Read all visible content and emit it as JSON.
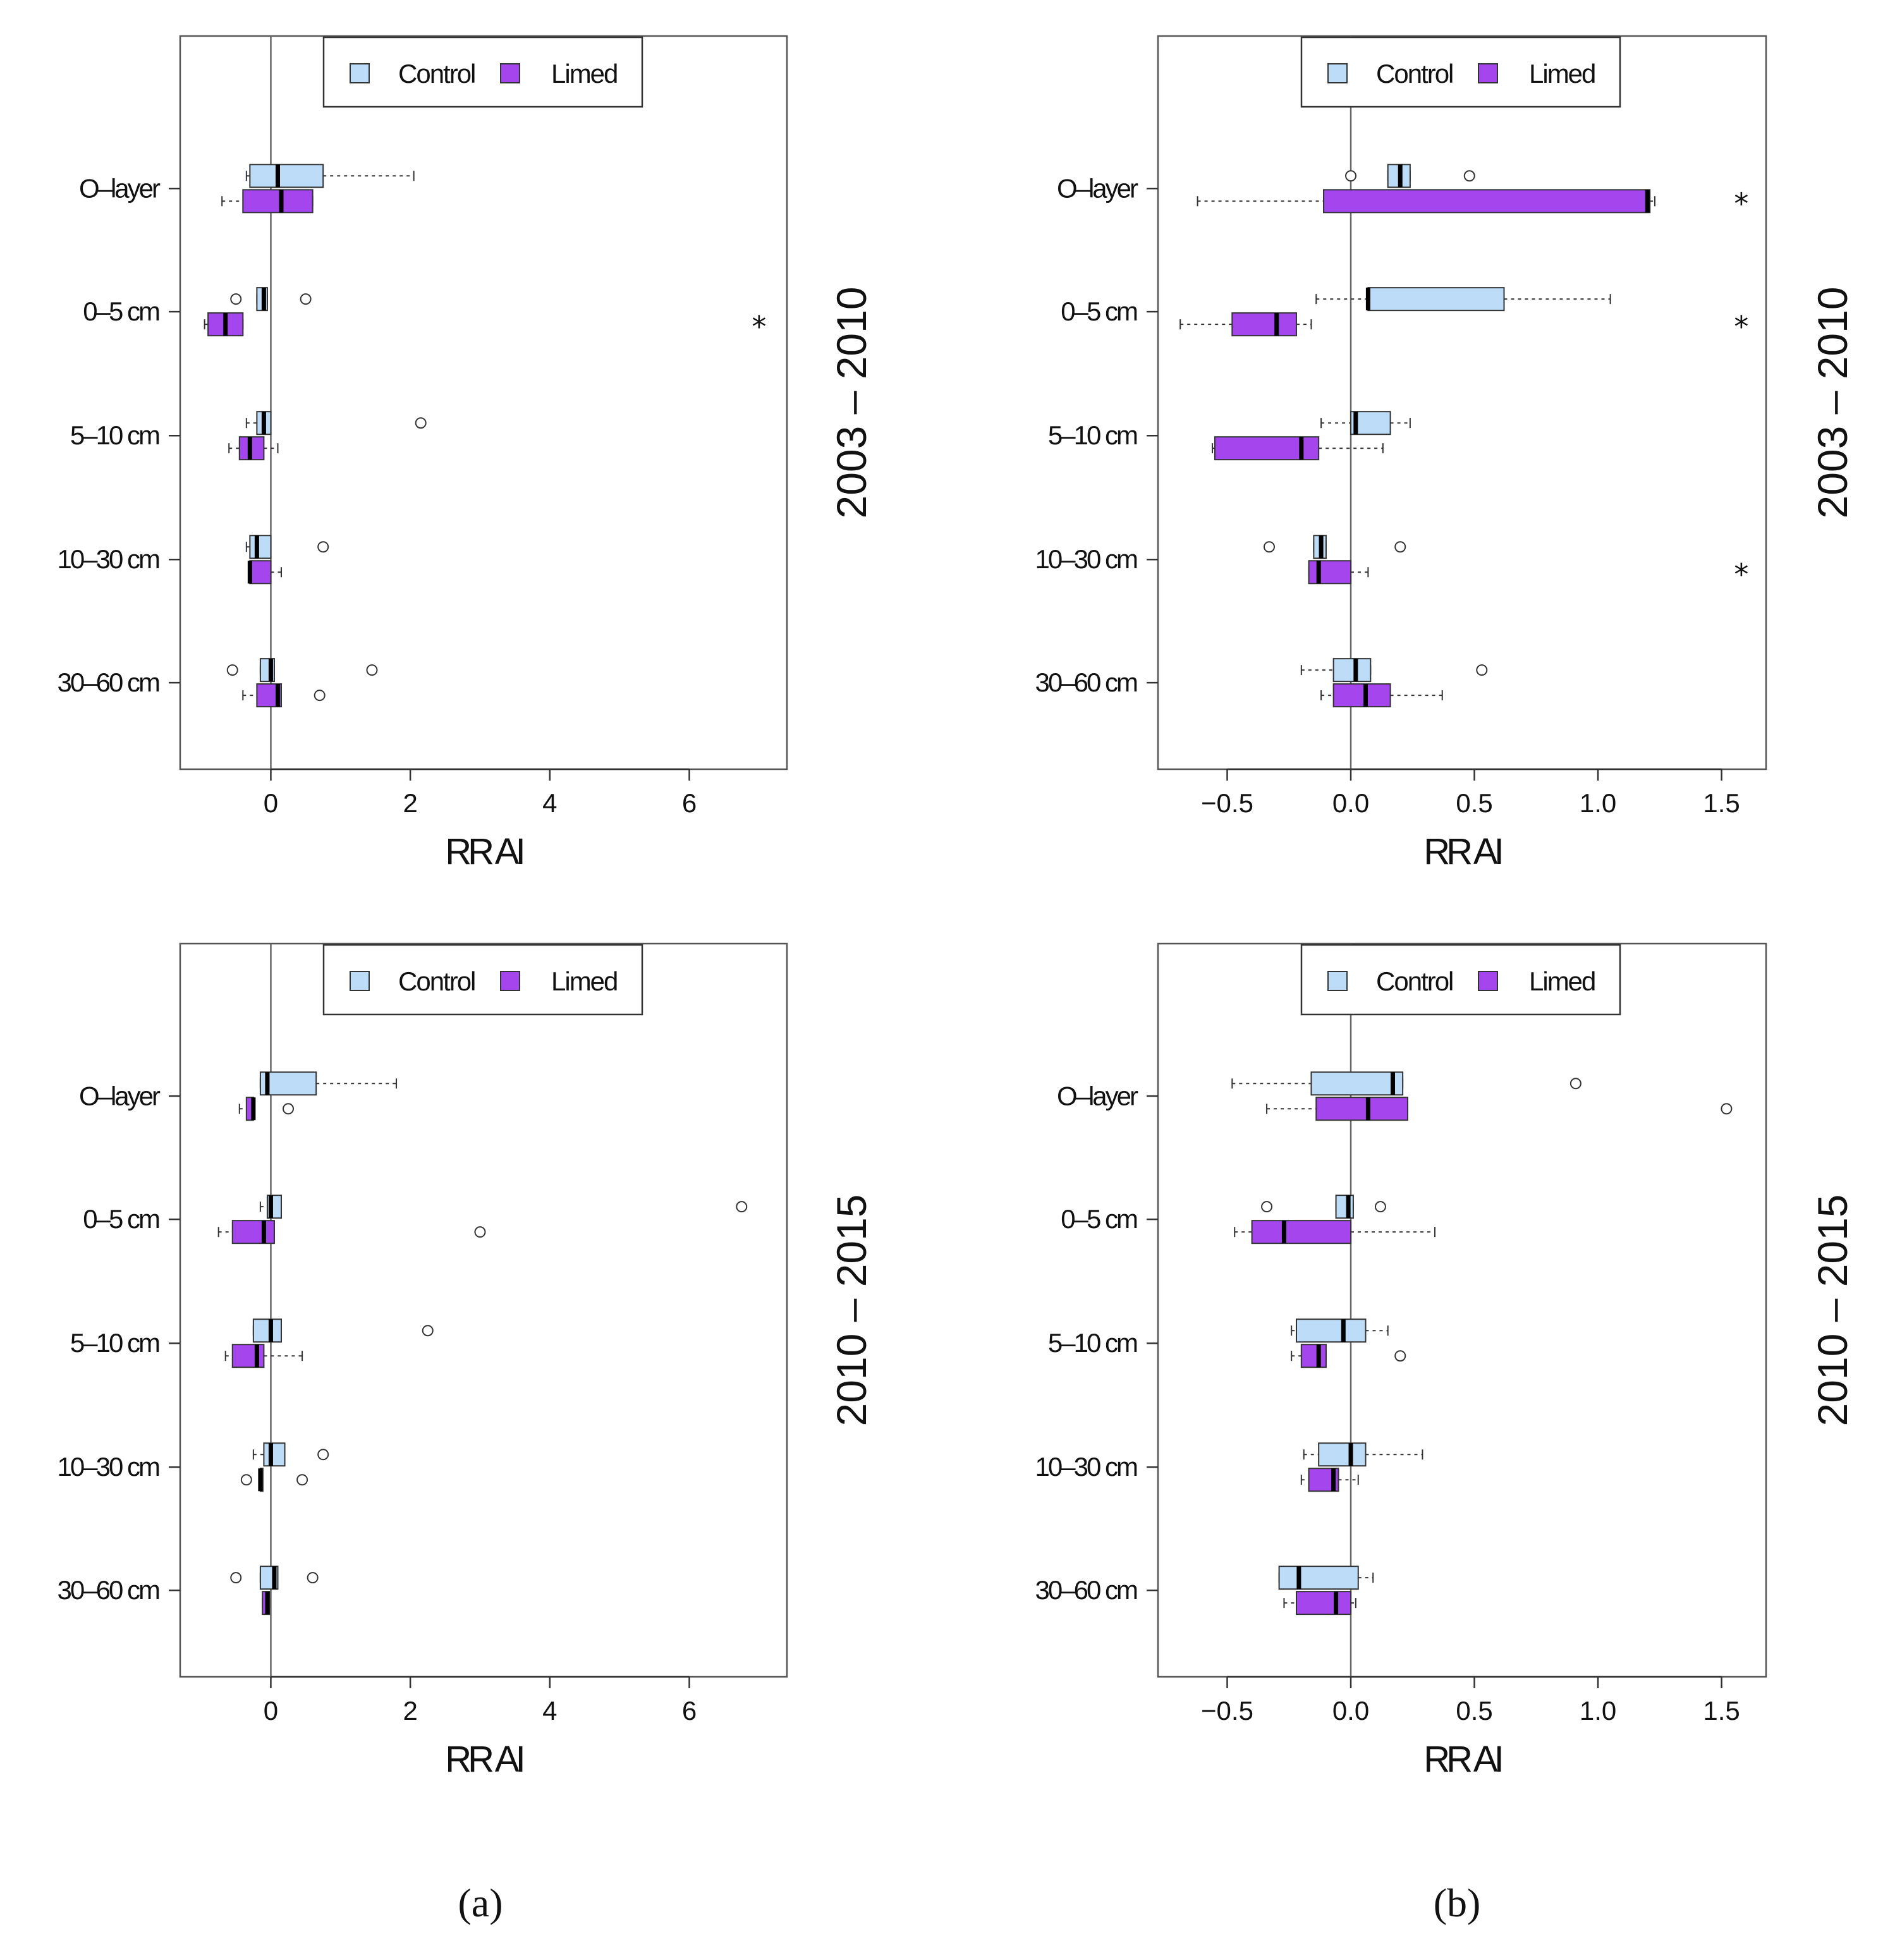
{
  "figure": {
    "captions": {
      "left": "(a)",
      "right": "(b)"
    }
  },
  "colors": {
    "control": "#bddcf7",
    "limed": "#a445ee",
    "axis": "#555555"
  },
  "chart_data": [
    {
      "id": "a-2003",
      "type": "boxplot",
      "column": "a",
      "period": "2003 – 2010",
      "xlabel": "RR AI",
      "xlim": [
        -1.3,
        7.4
      ],
      "xticks": [
        0,
        2,
        4,
        6
      ],
      "xtick_labels": [
        "0",
        "2",
        "4",
        "6"
      ],
      "categories": [
        "O–layer",
        "0–5 cm",
        "5–10 cm",
        "10–30 cm",
        "30–60 cm"
      ],
      "legend": [
        "Control",
        "Limed"
      ],
      "series": [
        {
          "name": "Control",
          "boxes": [
            {
              "wlo": -0.35,
              "q1": -0.3,
              "med": 0.1,
              "q3": 0.75,
              "whi": 2.05,
              "out": []
            },
            {
              "wlo": -0.2,
              "q1": -0.2,
              "med": -0.1,
              "q3": -0.05,
              "whi": -0.05,
              "out": [
                -0.5,
                0.5
              ]
            },
            {
              "wlo": -0.35,
              "q1": -0.2,
              "med": -0.1,
              "q3": 0.0,
              "whi": 0.0,
              "out": [
                2.15
              ]
            },
            {
              "wlo": -0.35,
              "q1": -0.3,
              "med": -0.2,
              "q3": 0.0,
              "whi": 0.0,
              "out": [
                0.75
              ]
            },
            {
              "wlo": -0.15,
              "q1": -0.15,
              "med": 0.0,
              "q3": 0.05,
              "whi": 0.05,
              "out": [
                -0.55,
                1.45
              ]
            }
          ]
        },
        {
          "name": "Limed",
          "boxes": [
            {
              "wlo": -0.7,
              "q1": -0.4,
              "med": 0.15,
              "q3": 0.6,
              "whi": 0.6,
              "out": []
            },
            {
              "wlo": -0.95,
              "q1": -0.9,
              "med": -0.65,
              "q3": -0.4,
              "whi": -0.4,
              "out": []
            },
            {
              "wlo": -0.6,
              "q1": -0.45,
              "med": -0.3,
              "q3": -0.1,
              "whi": 0.1,
              "out": []
            },
            {
              "wlo": -0.3,
              "q1": -0.3,
              "med": -0.3,
              "q3": 0.0,
              "whi": 0.15,
              "out": []
            },
            {
              "wlo": -0.4,
              "q1": -0.2,
              "med": 0.1,
              "q3": 0.15,
              "whi": 0.15,
              "out": [
                0.7
              ]
            }
          ]
        }
      ],
      "significance": [
        {
          "category": "0–5 cm",
          "label": "*"
        }
      ]
    },
    {
      "id": "b-2003",
      "type": "boxplot",
      "column": "b",
      "period": "2003 – 2010",
      "xlabel": "RR AI",
      "xlim": [
        -0.78,
        1.68
      ],
      "xticks": [
        -0.5,
        0.0,
        0.5,
        1.0,
        1.5
      ],
      "xtick_labels": [
        "−0.5",
        "0.0",
        "0.5",
        "1.0",
        "1.5"
      ],
      "categories": [
        "O–layer",
        "0–5 cm",
        "5–10 cm",
        "10–30 cm",
        "30–60 cm"
      ],
      "legend": [
        "Control",
        "Limed"
      ],
      "series": [
        {
          "name": "Control",
          "boxes": [
            {
              "wlo": 0.15,
              "q1": 0.15,
              "med": 0.2,
              "q3": 0.24,
              "whi": 0.24,
              "out": [
                0.0,
                0.48
              ]
            },
            {
              "wlo": -0.14,
              "q1": 0.07,
              "med": 0.07,
              "q3": 0.62,
              "whi": 1.05,
              "out": []
            },
            {
              "wlo": -0.12,
              "q1": 0.0,
              "med": 0.02,
              "q3": 0.16,
              "whi": 0.24,
              "out": []
            },
            {
              "wlo": -0.15,
              "q1": -0.15,
              "med": -0.12,
              "q3": -0.1,
              "whi": -0.1,
              "out": [
                -0.33,
                0.2
              ]
            },
            {
              "wlo": -0.2,
              "q1": -0.07,
              "med": 0.02,
              "q3": 0.08,
              "whi": 0.08,
              "out": [
                0.53
              ]
            }
          ]
        },
        {
          "name": "Limed",
          "boxes": [
            {
              "wlo": -0.62,
              "q1": -0.11,
              "med": 1.2,
              "q3": 1.21,
              "whi": 1.23,
              "out": []
            },
            {
              "wlo": -0.69,
              "q1": -0.48,
              "med": -0.3,
              "q3": -0.22,
              "whi": -0.16,
              "out": []
            },
            {
              "wlo": -0.56,
              "q1": -0.55,
              "med": -0.2,
              "q3": -0.13,
              "whi": 0.13,
              "out": []
            },
            {
              "wlo": -0.17,
              "q1": -0.17,
              "med": -0.13,
              "q3": 0.0,
              "whi": 0.07,
              "out": []
            },
            {
              "wlo": -0.12,
              "q1": -0.07,
              "med": 0.06,
              "q3": 0.16,
              "whi": 0.37,
              "out": []
            }
          ]
        }
      ],
      "significance": [
        {
          "category": "O–layer",
          "label": "*"
        },
        {
          "category": "0–5 cm",
          "label": "*"
        },
        {
          "category": "10–30 cm",
          "label": "*"
        }
      ]
    },
    {
      "id": "a-2010",
      "type": "boxplot",
      "column": "a",
      "period": "2010 – 2015",
      "xlabel": "RR AI",
      "xlim": [
        -1.3,
        7.4
      ],
      "xticks": [
        0,
        2,
        4,
        6
      ],
      "xtick_labels": [
        "0",
        "2",
        "4",
        "6"
      ],
      "categories": [
        "O–layer",
        "0–5 cm",
        "5–10 cm",
        "10–30 cm",
        "30–60 cm"
      ],
      "legend": [
        "Control",
        "Limed"
      ],
      "series": [
        {
          "name": "Control",
          "boxes": [
            {
              "wlo": -0.15,
              "q1": -0.15,
              "med": -0.05,
              "q3": 0.65,
              "whi": 1.8,
              "out": []
            },
            {
              "wlo": -0.15,
              "q1": -0.05,
              "med": 0.0,
              "q3": 0.15,
              "whi": 0.15,
              "out": [
                6.75
              ]
            },
            {
              "wlo": -0.25,
              "q1": -0.25,
              "med": 0.0,
              "q3": 0.15,
              "whi": 0.15,
              "out": [
                2.25
              ]
            },
            {
              "wlo": -0.25,
              "q1": -0.1,
              "med": 0.0,
              "q3": 0.2,
              "whi": 0.2,
              "out": [
                0.75
              ]
            },
            {
              "wlo": -0.15,
              "q1": -0.15,
              "med": 0.05,
              "q3": 0.1,
              "whi": 0.1,
              "out": [
                -0.5,
                0.6
              ]
            }
          ]
        },
        {
          "name": "Limed",
          "boxes": [
            {
              "wlo": -0.45,
              "q1": -0.35,
              "med": -0.25,
              "q3": -0.25,
              "whi": -0.25,
              "out": [
                0.25
              ]
            },
            {
              "wlo": -0.75,
              "q1": -0.55,
              "med": -0.1,
              "q3": 0.05,
              "whi": 0.05,
              "out": [
                3.0
              ]
            },
            {
              "wlo": -0.65,
              "q1": -0.55,
              "med": -0.2,
              "q3": -0.1,
              "whi": 0.45,
              "out": []
            },
            {
              "wlo": -0.15,
              "q1": -0.15,
              "med": -0.15,
              "q3": -0.12,
              "whi": -0.12,
              "out": [
                -0.35,
                0.45
              ]
            },
            {
              "wlo": -0.12,
              "q1": -0.12,
              "med": -0.05,
              "q3": -0.02,
              "whi": -0.02,
              "out": []
            }
          ]
        }
      ],
      "significance": []
    },
    {
      "id": "b-2010",
      "type": "boxplot",
      "column": "b",
      "period": "2010 – 2015",
      "xlabel": "RR AI",
      "xlim": [
        -0.78,
        1.68
      ],
      "xticks": [
        -0.5,
        0.0,
        0.5,
        1.0,
        1.5
      ],
      "xtick_labels": [
        "−0.5",
        "0.0",
        "0.5",
        "1.0",
        "1.5"
      ],
      "categories": [
        "O–layer",
        "0–5 cm",
        "5–10 cm",
        "10–30 cm",
        "30–60 cm"
      ],
      "legend": [
        "Control",
        "Limed"
      ],
      "series": [
        {
          "name": "Control",
          "boxes": [
            {
              "wlo": -0.48,
              "q1": -0.16,
              "med": 0.17,
              "q3": 0.21,
              "whi": 0.21,
              "out": [
                0.91
              ]
            },
            {
              "wlo": -0.06,
              "q1": -0.06,
              "med": -0.01,
              "q3": 0.01,
              "whi": 0.01,
              "out": [
                -0.34,
                0.12
              ]
            },
            {
              "wlo": -0.24,
              "q1": -0.22,
              "med": -0.03,
              "q3": 0.06,
              "whi": 0.15,
              "out": []
            },
            {
              "wlo": -0.19,
              "q1": -0.13,
              "med": 0.0,
              "q3": 0.06,
              "whi": 0.29,
              "out": []
            },
            {
              "wlo": -0.29,
              "q1": -0.29,
              "med": -0.21,
              "q3": 0.03,
              "whi": 0.09,
              "out": []
            }
          ]
        },
        {
          "name": "Limed",
          "boxes": [
            {
              "wlo": -0.34,
              "q1": -0.14,
              "med": 0.07,
              "q3": 0.23,
              "whi": 0.23,
              "out": [
                1.52
              ]
            },
            {
              "wlo": -0.47,
              "q1": -0.4,
              "med": -0.27,
              "q3": 0.0,
              "whi": 0.34,
              "out": []
            },
            {
              "wlo": -0.24,
              "q1": -0.2,
              "med": -0.13,
              "q3": -0.1,
              "whi": -0.1,
              "out": [
                0.2
              ]
            },
            {
              "wlo": -0.2,
              "q1": -0.17,
              "med": -0.07,
              "q3": -0.05,
              "whi": 0.03,
              "out": []
            },
            {
              "wlo": -0.27,
              "q1": -0.22,
              "med": -0.06,
              "q3": 0.0,
              "whi": 0.02,
              "out": []
            }
          ]
        }
      ],
      "significance": []
    }
  ]
}
